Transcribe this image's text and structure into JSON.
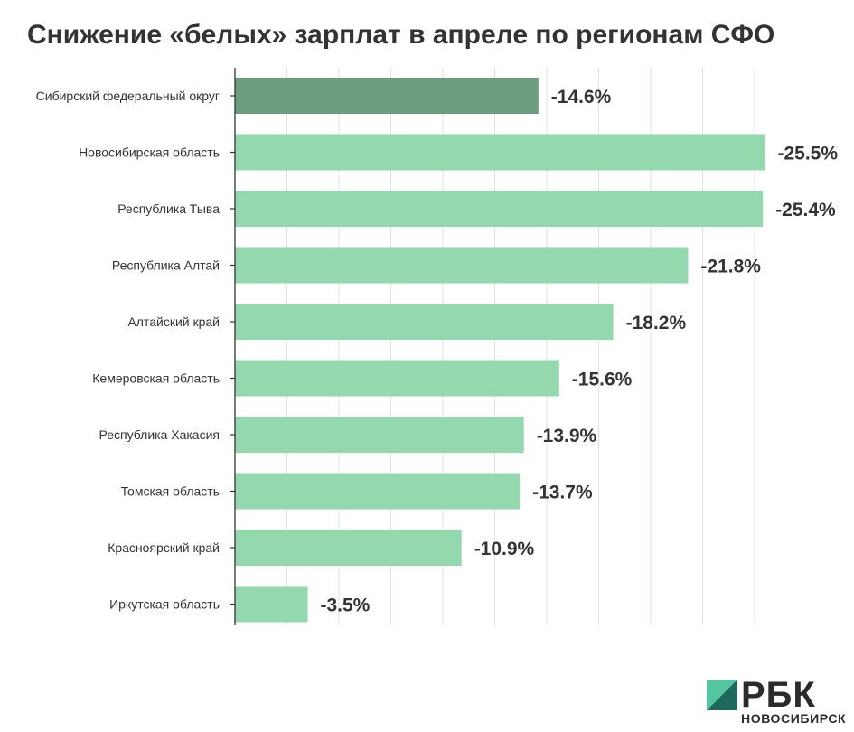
{
  "title": "Снижение «белых» зарплат в апреле по регионам СФО",
  "colors": {
    "highlight_bar": "#6a9c7e",
    "bar": "#94d8ae",
    "grid": "#e1e1e1",
    "axis": "#333333",
    "text": "#333333",
    "logo_light": "#55c7a0",
    "logo_dark": "#1d6a5c"
  },
  "chart_data": {
    "type": "bar",
    "orientation": "horizontal",
    "title": "Снижение «белых» зарплат в апреле по регионам СФО",
    "xlabel": "",
    "ylabel": "",
    "grid": true,
    "categories": [
      "Сибирский федеральный округ",
      "Новосибирская область",
      "Республика Тыва",
      "Республика Алтай",
      "Алтайский край",
      "Кемеровская область",
      "Республика Хакасия",
      "Томская область",
      "Красноярский край",
      "Иркутская область"
    ],
    "values": [
      -14.6,
      -25.5,
      -25.4,
      -21.8,
      -18.2,
      -15.6,
      -13.9,
      -13.7,
      -10.9,
      -3.5
    ],
    "value_labels": [
      "-14.6%",
      "-25.5%",
      "-25.4%",
      "-21.8%",
      "-18.2%",
      "-15.6%",
      "-13.9%",
      "-13.7%",
      "-10.9%",
      "-3.5%"
    ],
    "highlight_index": 0,
    "xlim": [
      0,
      26
    ]
  },
  "logo": {
    "name": "РБК",
    "subtitle": "НОВОСИБИРСК"
  }
}
